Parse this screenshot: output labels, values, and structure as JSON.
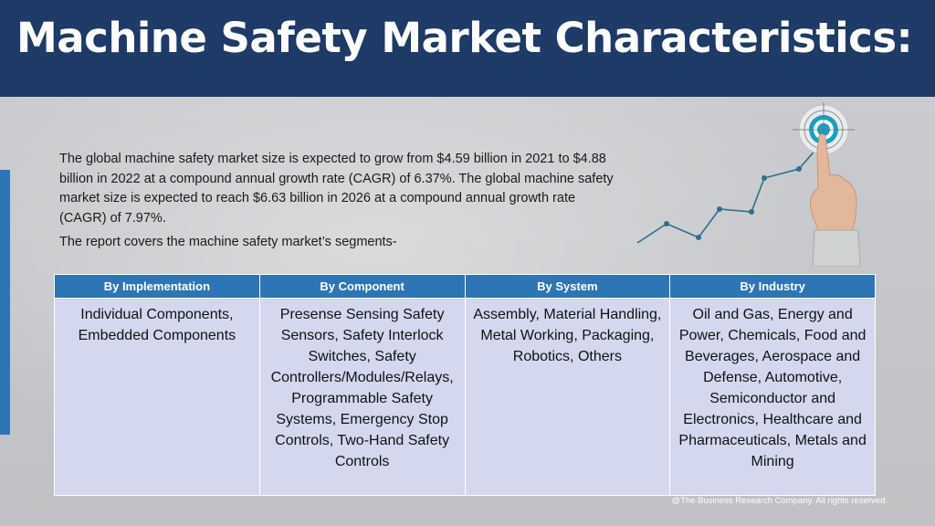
{
  "title": "Machine Safety Market Characteristics:",
  "intro": "The global machine safety market size is expected to grow from $4.59 billion in 2021 to $4.88 billion in 2022 at a compound annual growth rate (CAGR) of 6.37%. The global machine safety market size is expected to reach $6.63 billion in 2026 at a compound annual growth rate (CAGR) of 7.97%.",
  "segments_line": "The report covers the machine safety market’s segments-",
  "table": {
    "headers": [
      "By Implementation",
      "By Component",
      "By System",
      "By Industry"
    ],
    "cells": [
      "Individual Components, Embedded Components",
      "Presense Sensing Safety Sensors, Safety Interlock Switches, Safety Controllers/Modules/Relays, Programmable Safety Systems, Emergency Stop Controls, Two-Hand Safety Controls",
      "Assembly, Material Handling, Metal Working, Packaging, Robotics, Others",
      "Oil and Gas, Energy and Power, Chemicals, Food and Beverages, Aerospace and Defense, Automotive, Semiconductor and Electronics, Healthcare and Pharmaceuticals, Metals and Mining"
    ]
  },
  "footer": "@The Business Research Company. All rights reserved.",
  "colors": {
    "header_bg": "#1e3a66",
    "accent": "#2e75b6",
    "table_header": "#2e75b6",
    "table_cell": "#d4d8ee"
  },
  "icons": [
    "growth-chart-illustration",
    "target-icon",
    "pointing-hand-icon"
  ]
}
